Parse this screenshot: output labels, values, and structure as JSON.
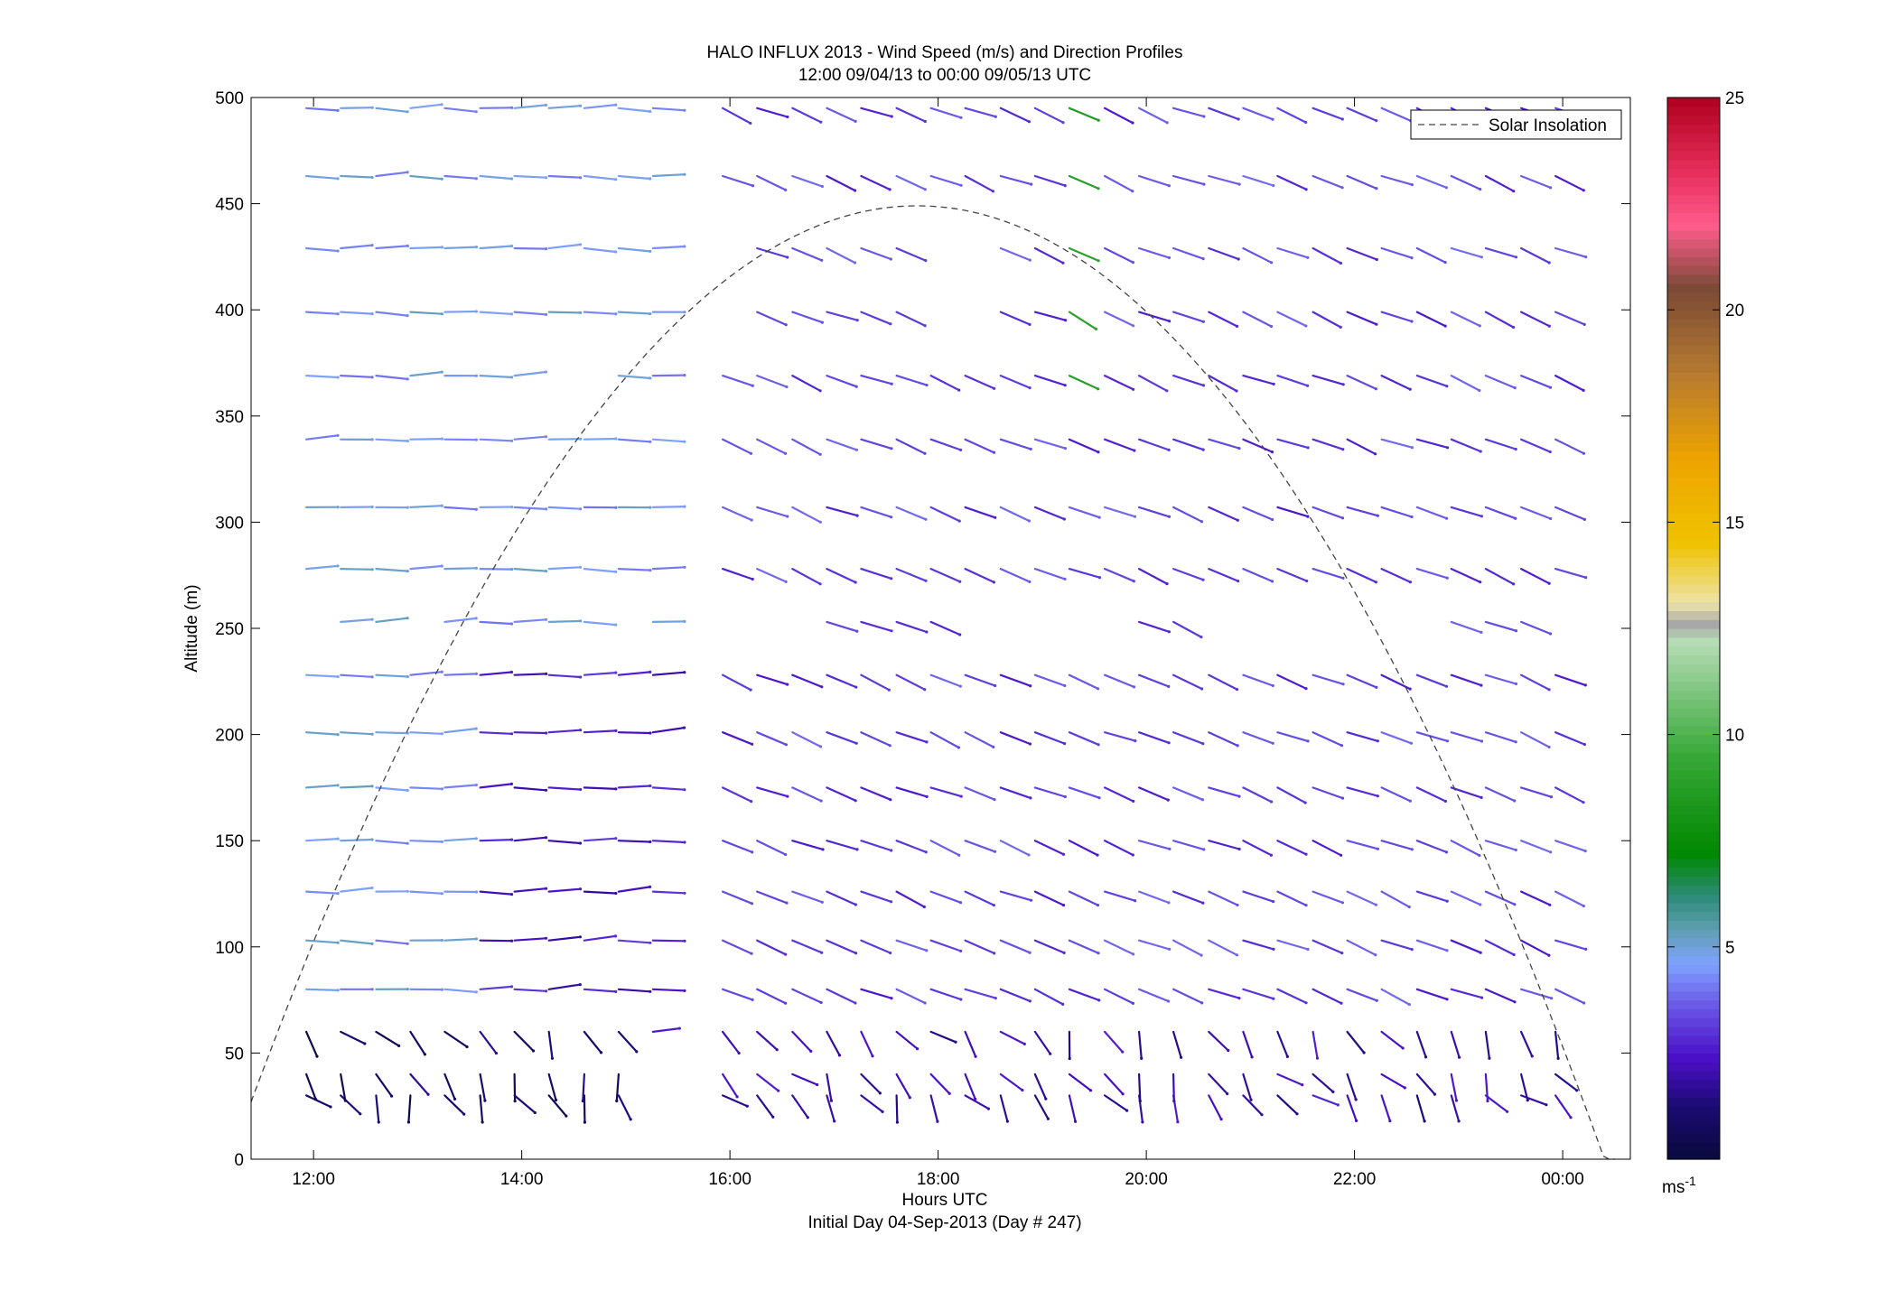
{
  "chart_data": {
    "type": "wind-barb-profile",
    "title": "HALO INFLUX 2013 - Wind Speed (m/s) and Direction Profiles",
    "subtitle": "12:00 09/04/13 to 00:00 09/05/13  UTC",
    "xlabel": "Hours UTC",
    "xlabel2": "Initial Day 04-Sep-2013 (Day # 247)",
    "ylabel": "Altitude (m)",
    "xlim": [
      11.4,
      24.65
    ],
    "ylim": [
      0,
      500
    ],
    "x_ticks": [
      12,
      14,
      16,
      18,
      20,
      22,
      24
    ],
    "x_tick_labels": [
      "12:00",
      "14:00",
      "16:00",
      "18:00",
      "20:00",
      "22:00",
      "00:00"
    ],
    "y_ticks": [
      0,
      50,
      100,
      150,
      200,
      250,
      300,
      350,
      400,
      450,
      500
    ],
    "y_tick_labels": [
      "0",
      "50",
      "100",
      "150",
      "200",
      "250",
      "300",
      "350",
      "400",
      "450",
      "500"
    ],
    "legend": {
      "placement": "top-right",
      "entries": [
        "Solar Insolation"
      ]
    },
    "colorbar": {
      "min": 0,
      "max": 25,
      "ticks": [
        5,
        10,
        15,
        20,
        25
      ],
      "tick_labels": [
        "5",
        "10",
        "15",
        "20",
        "25"
      ],
      "unit_label": "ms",
      "unit_exponent": "-1"
    },
    "solar_insolation": {
      "peak_hour": 17.8,
      "peak_altitude_m": 449,
      "rise_hour": 11.4,
      "rise_altitude_m": 27,
      "set_hour": 24.5
    },
    "time_step_h": 0.333,
    "heights_m": [
      30,
      40,
      60,
      80,
      103,
      126,
      150,
      175,
      201,
      228,
      253,
      278,
      307,
      339,
      369,
      399,
      429,
      463,
      495
    ],
    "profile_times": [
      12,
      12.33,
      12.67,
      13,
      13.33,
      13.67,
      14,
      14.33,
      14.67,
      15,
      15.33,
      15.67,
      16,
      16.33,
      16.67,
      17,
      17.33,
      17.67,
      18,
      18.33,
      18.67,
      19,
      19.33,
      19.67,
      20,
      20.33,
      20.67,
      21,
      21.33,
      21.67,
      22,
      22.33,
      22.67,
      23,
      23.33,
      23.67,
      24
    ],
    "wind_field": [
      {
        "hour_start": 12.0,
        "hour_end": 15.6,
        "h_min": 60,
        "h_max": 500,
        "dir_deg": 90,
        "speed": 4.6
      },
      {
        "hour_start": 13.6,
        "hour_end": 15.6,
        "h_min": 60,
        "h_max": 240,
        "dir_deg": 88,
        "speed": 2.5
      },
      {
        "hour_start": 12.0,
        "hour_end": 15.0,
        "h_min": 25,
        "h_max": 60,
        "dir_deg": 150,
        "speed": 1.0
      },
      {
        "hour_start": 15.9,
        "hour_end": 24.0,
        "h_min": 60,
        "h_max": 500,
        "dir_deg": 112,
        "speed": 3.2
      },
      {
        "hour_start": 15.9,
        "hour_end": 24.0,
        "h_min": 25,
        "h_max": 60,
        "dir_deg": 145,
        "speed": 2.0
      },
      {
        "hour_start": 19.3,
        "hour_end": 19.6,
        "h_min": 360,
        "h_max": 500,
        "dir_deg": 118,
        "speed": 8.5
      }
    ],
    "missing_levels": [
      {
        "height_m": 253,
        "hours": [
          12.0,
          13.0,
          15.0,
          15.67,
          16.0,
          16.33,
          16.67,
          18.33,
          18.67,
          19.0,
          19.33,
          19.67,
          20.67,
          21.0,
          21.33,
          21.67,
          22.0,
          22.33,
          22.67,
          24.0
        ]
      },
      {
        "height_m": 369,
        "hours": [
          14.33,
          14.67
        ]
      },
      {
        "height_m": 399,
        "hours": [
          15.67,
          16.0,
          18.0,
          18.33
        ]
      },
      {
        "height_m": 429,
        "hours": [
          15.67,
          16.0,
          18.0,
          18.33
        ]
      }
    ]
  }
}
